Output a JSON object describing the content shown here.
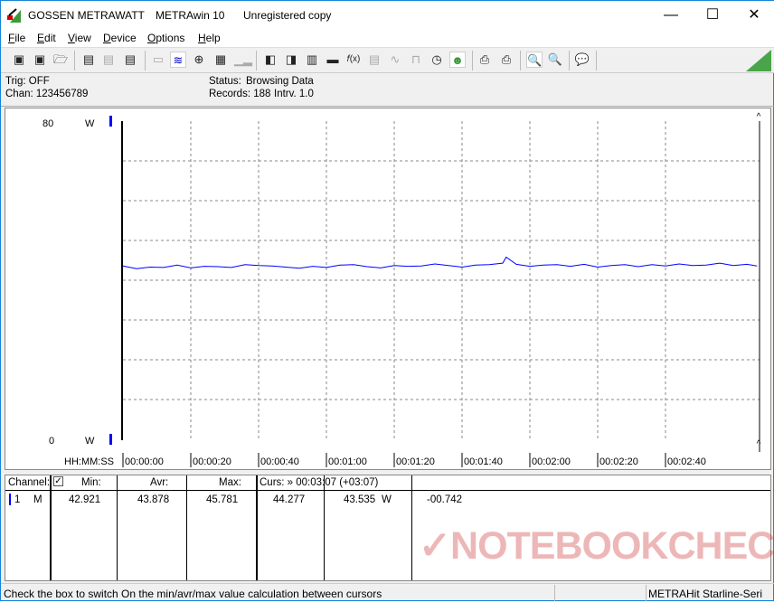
{
  "titlebar": {
    "brand": "GOSSEN METRAWATT",
    "app": "METRAwin 10",
    "license": "Unregistered copy",
    "minimize": "—",
    "maximize": "☐",
    "close": "✕"
  },
  "menu": [
    "File",
    "Edit",
    "View",
    "Device",
    "Options",
    "Help"
  ],
  "toolbar": {
    "icons": [
      "save-icon",
      "save-as-icon",
      "open-icon",
      "device-read-icon",
      "device-transfer-icon",
      "device-memory-icon",
      "display-icon",
      "waveform-icon",
      "crosshair-icon",
      "table-icon",
      "bar-chart-icon",
      "export-icon",
      "channel-config-icon",
      "data-list-icon",
      "monitor-icon",
      "formula-icon",
      "meter-icon",
      "sine-icon",
      "signal-icon",
      "clock-icon",
      "trigger-icon",
      "print-preview-icon",
      "print-icon",
      "zoom-wave-icon",
      "zoom-icon",
      "comment-icon"
    ]
  },
  "info": {
    "trig": "Trig: OFF",
    "chan": "Chan:  123456789",
    "status_label": "Status:",
    "status_value": "Browsing Data",
    "records": "Records: 188",
    "interval": "Intrv. 1.0"
  },
  "chart_data": {
    "type": "line",
    "xlabel": "HH:MM:SS",
    "ylabel": "W",
    "ylim": [
      0,
      80
    ],
    "xlim_seconds": [
      0,
      187
    ],
    "y_ticks": [
      "80",
      "0"
    ],
    "y_unit": "W",
    "x_ticks": [
      "00:00:00",
      "00:00:20",
      "00:00:40",
      "00:01:00",
      "00:01:20",
      "00:01:40",
      "00:02:00",
      "00:02:20",
      "00:02:40"
    ],
    "grid": true,
    "series_color": "#0000ff",
    "x_seconds": [
      0,
      4,
      8,
      12,
      16,
      20,
      24,
      28,
      32,
      36,
      40,
      44,
      48,
      52,
      56,
      60,
      64,
      68,
      72,
      76,
      80,
      84,
      88,
      92,
      96,
      100,
      104,
      108,
      112,
      113,
      116,
      120,
      124,
      128,
      132,
      136,
      140,
      144,
      148,
      152,
      156,
      160,
      164,
      168,
      172,
      176,
      180,
      184,
      187
    ],
    "values": [
      43.6,
      42.9,
      43.3,
      43.2,
      43.8,
      43.1,
      43.5,
      43.4,
      43.2,
      43.9,
      43.7,
      43.6,
      43.3,
      43.0,
      43.5,
      43.2,
      43.8,
      43.9,
      43.4,
      43.1,
      43.7,
      43.5,
      43.6,
      44.1,
      43.7,
      43.3,
      43.8,
      43.9,
      44.3,
      45.8,
      44.0,
      43.5,
      43.8,
      43.9,
      43.5,
      44.0,
      43.3,
      43.7,
      43.9,
      43.4,
      43.9,
      43.6,
      44.1,
      43.7,
      43.8,
      44.3,
      43.7,
      44.0,
      43.6
    ]
  },
  "table": {
    "headers": {
      "channel": "Channel:",
      "min": "Min:",
      "avr": "Avr:",
      "max": "Max:",
      "curs": "Curs: » 00:03:07 (+03:07)"
    },
    "checkbox_checked": true,
    "row": {
      "channel": "1",
      "mode": "M",
      "min": "42.921",
      "avr": "43.878",
      "max": "45.781",
      "curs1": "44.277",
      "curs2": "43.535",
      "unit": "W",
      "diff": "-00.742"
    }
  },
  "watermark": "NOTEBOOKCHECK",
  "status": {
    "hint": "Check the box to switch On the min/avr/max value calculation between cursors",
    "device": "METRAHit Starline-Seri"
  }
}
